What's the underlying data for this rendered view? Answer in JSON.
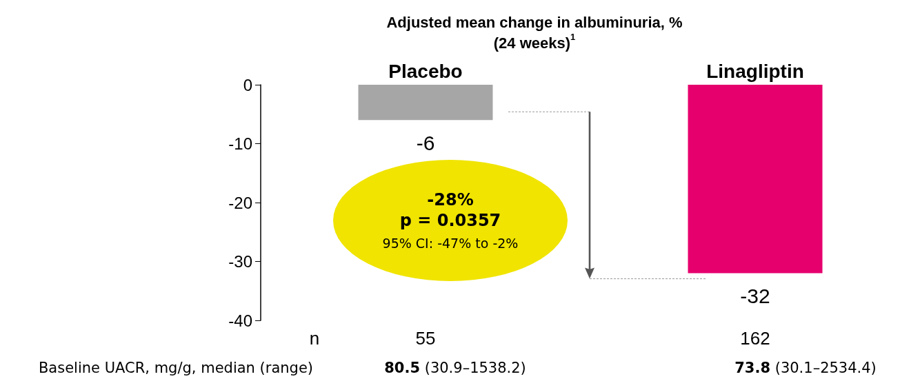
{
  "chart_data": {
    "type": "bar",
    "title": "Adjusted mean change in albuminuria, %\n(24 weeks)$^{1}$",
    "categories": [
      "Placebo",
      "Linagliptin"
    ],
    "values": [
      -6,
      -32
    ],
    "colors": [
      "#a6a6a6",
      "#e6006e"
    ],
    "ylim": [
      -40,
      0
    ],
    "yticks": [
      0,
      -10,
      -20,
      -30,
      -40
    ],
    "data_labels": true,
    "grid": false,
    "annotations": [
      "-28%",
      "p = 0.0357",
      "95% CI: -47% to -2%",
      "n",
      "55",
      "162",
      "Baseline UACR, mg/g, median (range)",
      "80.5 (30.9–1538.2)",
      "73.8 (30.1–2534.4)"
    ]
  }
}
